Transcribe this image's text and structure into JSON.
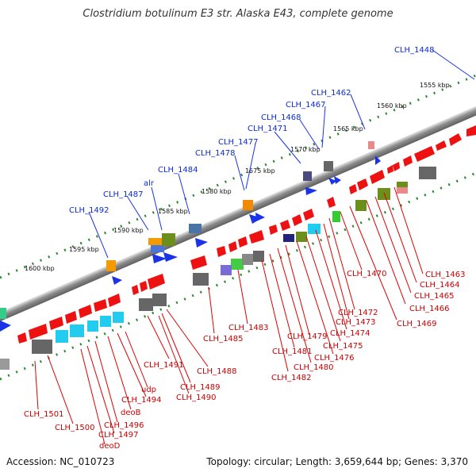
{
  "title": "Clostridium botulinum E3 str. Alaska E43, complete genome",
  "accession": "Accession: NC_010723",
  "topology": "Topology: circular; Length: 3,659,644 bp; Genes: 3,370",
  "scale_labels": [
    "1555 kbp",
    "1560 kbp",
    "1565 kbp",
    "1570 kbp",
    "1575 kbp",
    "1580 kbp",
    "1585 kbp",
    "1590 kbp",
    "1595 kbp",
    "1600 kbp"
  ],
  "blue_labels": [
    "CLH_1448",
    "CLH_1462",
    "CLH_1467",
    "CLH_1468",
    "CLH_1471",
    "CLH_1477",
    "CLH_1478",
    "CLH_1484",
    "alr",
    "CLH_1487",
    "CLH_1492"
  ],
  "red_labels": [
    "CLH_1463",
    "CLH_1464",
    "CLH_1465",
    "CLH_1466",
    "CLH_1469",
    "CLH_1470",
    "CLH_1472",
    "CLH_1473",
    "CLH_1474",
    "CLH_1475",
    "CLH_1476",
    "CLH_1479",
    "CLH_1480",
    "CLH_1481",
    "CLH_1482",
    "CLH_1483",
    "CLH_1485",
    "CLH_1488",
    "CLH_1489",
    "CLH_1490",
    "CLH_1491",
    "udp",
    "CLH_1494",
    "deoB",
    "CLH_1496",
    "CLH_1497",
    "deoD",
    "CLH_1500",
    "CLH_1501"
  ],
  "colors": {
    "blue": "#0b2bd6",
    "red": "#cc0000",
    "green_tick": "#2a8a2a",
    "backbone": "#8a8a8a"
  }
}
